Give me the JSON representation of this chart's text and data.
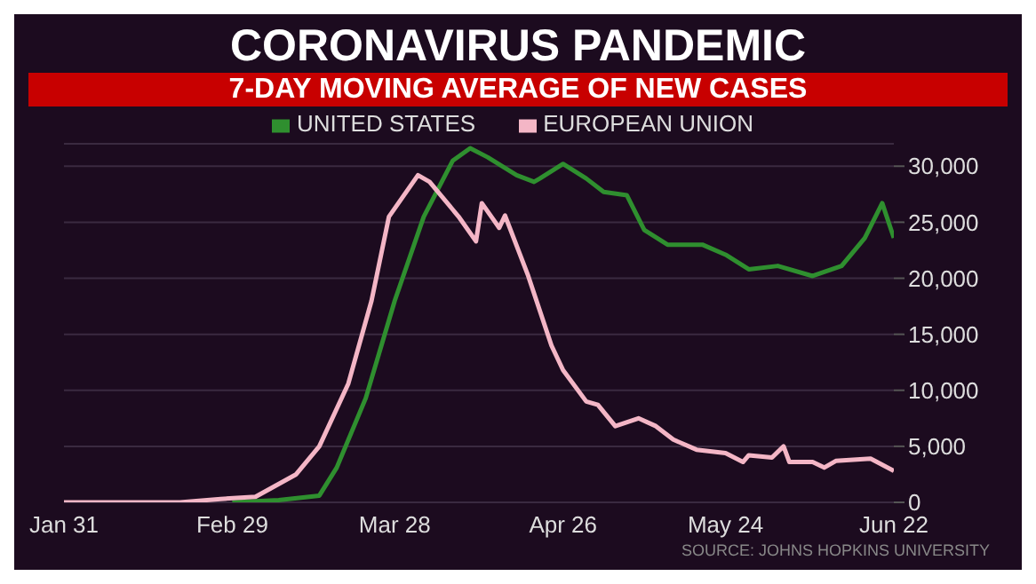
{
  "chart_data": {
    "type": "line",
    "title": "CORONAVIRUS PANDEMIC",
    "subtitle": "7-DAY MOVING AVERAGE OF NEW CASES",
    "annotations": [
      "SOURCE: JOHNS HOPKINS UNIVERSITY"
    ],
    "series": [
      {
        "name": "UNITED STATES",
        "color": "#2f8f2f",
        "x": [
          "--02-29",
          "--03-08",
          "--03-15",
          "--03-18",
          "--03-23",
          "--03-28",
          "--04-02",
          "--04-07",
          "--04-10",
          "--04-13",
          "--04-18",
          "--04-21",
          "--04-22",
          "--04-26",
          "--04-30",
          "--05-03",
          "--05-07",
          "--05-10",
          "--05-14",
          "--05-20",
          "--05-24",
          "--05-28",
          "--06-02",
          "--06-08",
          "--06-13",
          "--06-17",
          "--06-20",
          "--06-22"
        ],
        "values": [
          0,
          200,
          600,
          3100,
          9300,
          18000,
          25500,
          30500,
          31600,
          30800,
          29200,
          28600,
          28900,
          30200,
          28900,
          27700,
          27400,
          24300,
          23000,
          23000,
          22100,
          20800,
          21100,
          20200,
          21100,
          23600,
          26700,
          23600
        ]
      },
      {
        "name": "EUROPEAN UNION",
        "color": "#f4b6c6",
        "x": [
          "--01-31",
          "--02-20",
          "--02-27",
          "--03-04",
          "--03-11",
          "--03-15",
          "--03-20",
          "--03-24",
          "--03-27",
          "--04-01",
          "--04-03",
          "--04-08",
          "--04-11",
          "--04-12",
          "--04-15",
          "--04-16",
          "--04-20",
          "--04-24",
          "--04-26",
          "--04-30",
          "--05-02",
          "--05-05",
          "--05-09",
          "--05-12",
          "--05-15",
          "--05-19",
          "--05-24",
          "--05-27",
          "--05-28",
          "--06-01",
          "--06-03",
          "--06-04",
          "--06-08",
          "--06-10",
          "--06-12",
          "--06-18",
          "--06-22"
        ],
        "values": [
          0,
          0,
          300,
          500,
          2500,
          5000,
          10600,
          18000,
          25500,
          29200,
          28600,
          25500,
          23300,
          26700,
          24500,
          25600,
          20200,
          14000,
          11800,
          9000,
          8700,
          6800,
          7500,
          6800,
          5600,
          4700,
          4400,
          3600,
          4200,
          4000,
          5000,
          3600,
          3600,
          3100,
          3700,
          3900,
          2800
        ]
      }
    ],
    "xlim": [
      "--01-31",
      "--06-22"
    ],
    "xticks": [
      {
        "value": "--01-31",
        "label": "Jan 31"
      },
      {
        "value": "--02-29",
        "label": "Feb 29"
      },
      {
        "value": "--03-28",
        "label": "Mar 28"
      },
      {
        "value": "--04-26",
        "label": "Apr 26"
      },
      {
        "value": "--05-24",
        "label": "May 24"
      },
      {
        "value": "--06-22",
        "label": "Jun 22"
      }
    ],
    "ylim": [
      0,
      32000
    ],
    "yticks": [
      {
        "value": 0,
        "label": "0"
      },
      {
        "value": 5000,
        "label": "5,000"
      },
      {
        "value": 10000,
        "label": "10,000"
      },
      {
        "value": 15000,
        "label": "15,000"
      },
      {
        "value": 20000,
        "label": "20,000"
      },
      {
        "value": 25000,
        "label": "25,000"
      },
      {
        "value": 30000,
        "label": "30,000"
      }
    ],
    "grid": "y",
    "legend": "top",
    "marker": "none",
    "line_style": "solid"
  }
}
